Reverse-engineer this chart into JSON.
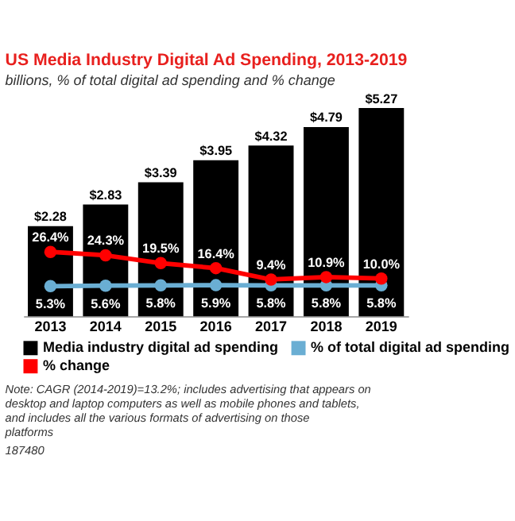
{
  "chart_data": {
    "type": "bar",
    "title": "US Media Industry Digital Ad Spending, 2013-2019",
    "subtitle": "billions, % of total digital ad spending and % change",
    "categories": [
      "2013",
      "2014",
      "2015",
      "2016",
      "2017",
      "2018",
      "2019"
    ],
    "series": [
      {
        "name": "Media industry digital ad spending",
        "color": "#000000",
        "values": [
          2.28,
          2.83,
          3.39,
          3.95,
          4.32,
          4.79,
          5.27
        ],
        "value_labels": [
          "$2.28",
          "$2.83",
          "$3.39",
          "$3.95",
          "$4.32",
          "$4.79",
          "$5.27"
        ]
      },
      {
        "name": "% of total digital ad spending",
        "type": "line",
        "axis": "y2",
        "color": "#6aaed3",
        "marker": "circle",
        "values": [
          5.3,
          5.6,
          5.8,
          5.9,
          5.8,
          5.8,
          5.8
        ],
        "value_labels": [
          "5.3%",
          "5.6%",
          "5.8%",
          "5.9%",
          "5.8%",
          "5.8%",
          "5.8%"
        ]
      },
      {
        "name": "% change",
        "type": "line",
        "axis": "y2",
        "color": "#ff0000",
        "marker": "circle",
        "values": [
          26.4,
          24.3,
          19.5,
          16.4,
          9.4,
          10.9,
          10.0
        ],
        "value_labels": [
          "26.4%",
          "24.3%",
          "19.5%",
          "16.4%",
          "9.4%",
          "10.9%",
          "10.0%"
        ]
      }
    ],
    "tick_labels": "x",
    "grid": false,
    "legend": "bottom",
    "annotations": [
      "Note: CAGR (2014-2019)=13.2%; includes advertising that appears on desktop and laptop computers as well as mobile phones and tablets, and includes all the various formats of advertising on those platforms",
      "187480"
    ]
  }
}
